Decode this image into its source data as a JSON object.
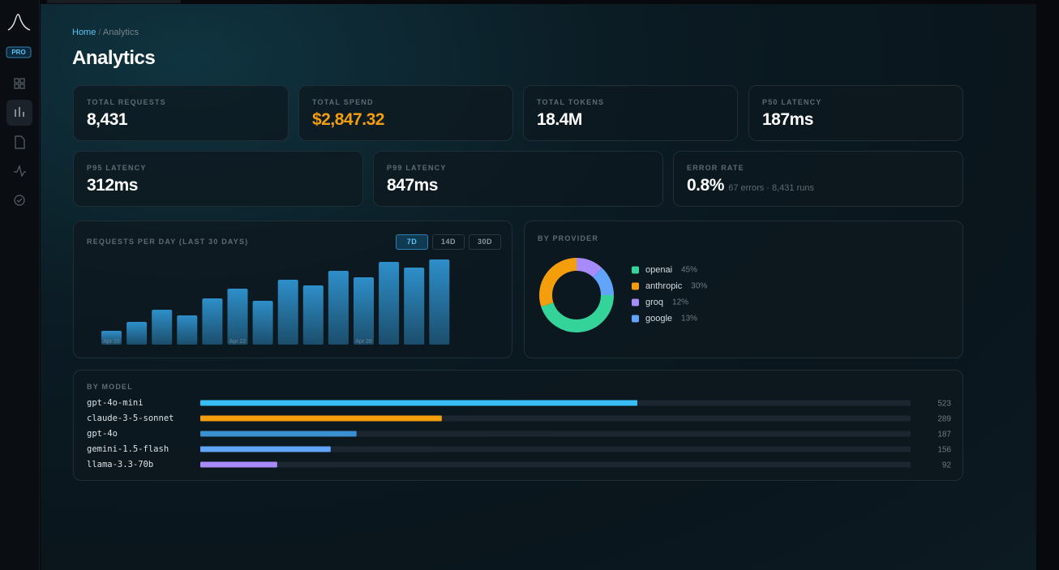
{
  "sidebar": {
    "badge": "PRO"
  },
  "breadcrumb": {
    "home": "Home",
    "separator": "/",
    "current": "Analytics"
  },
  "title": "Analytics",
  "kpis": [
    {
      "label": "TOTAL REQUESTS",
      "value": "8,431"
    },
    {
      "label": "TOTAL SPEND",
      "value": "$2,847.32"
    },
    {
      "label": "TOTAL TOKENS",
      "value": "18.4M"
    },
    {
      "label": "P50 LATENCY",
      "value": "187ms"
    },
    {
      "label": "P95 LATENCY",
      "value": "312ms"
    },
    {
      "label": "P99 LATENCY",
      "value": "847ms"
    },
    {
      "label": "ERROR RATE",
      "value": "0.8%",
      "note": "67 errors · 8,431 runs"
    }
  ],
  "chart_data": [
    {
      "type": "bar",
      "title": "REQUESTS PER DAY (LAST 30 DAYS)",
      "range_buttons": [
        "7D",
        "14D",
        "30D"
      ],
      "active_range": "7D",
      "categories": [
        "Apr 15",
        null,
        null,
        null,
        null,
        "Apr 22",
        null,
        null,
        null,
        null,
        "Apr 28",
        null,
        null,
        null
      ],
      "values": [
        17,
        28,
        43,
        36,
        57,
        69,
        54,
        80,
        73,
        91,
        83,
        102,
        95,
        105
      ],
      "ylim": [
        0,
        110
      ],
      "color": "#2e8fc9"
    },
    {
      "type": "pie",
      "donut": true,
      "title": "BY PROVIDER",
      "categories": [
        "openai",
        "anthropic",
        "groq",
        "google"
      ],
      "values": [
        45,
        30,
        12,
        13
      ],
      "value_labels": [
        "45%",
        "30%",
        "12%",
        "13%"
      ],
      "colors": [
        "#34d399",
        "#f59e0b",
        "#a78bfa",
        "#60a5fa"
      ]
    },
    {
      "type": "hbar",
      "title": "BY MODEL",
      "categories": [
        "gpt-4o-mini",
        "claude-3-5-sonnet",
        "gpt-4o",
        "gemini-1.5-flash",
        "llama-3.3-70b"
      ],
      "values": [
        523,
        289,
        187,
        156,
        92
      ],
      "xlim": [
        0,
        850
      ],
      "colors": [
        "#38bdf8",
        "#f59e0b",
        "#3a8fcf",
        "#60a5fa",
        "#a78bfa"
      ]
    }
  ]
}
